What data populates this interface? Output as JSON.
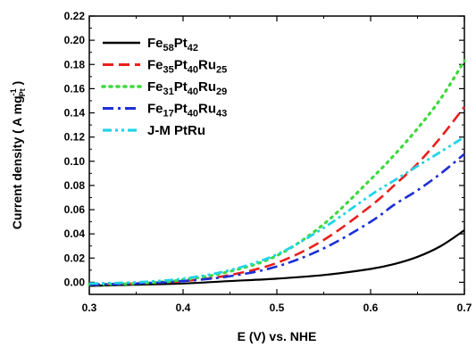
{
  "chart_data": {
    "type": "line",
    "xlabel": "E (V) vs. NHE",
    "ylabel_main": "Current density ( A mg",
    "ylabel_sup": "-1",
    "ylabel_sub": "Pt",
    "ylabel_close": " )",
    "xlim": [
      0.3,
      0.7
    ],
    "ylim": [
      -0.01,
      0.22
    ],
    "x_ticks": [
      0.3,
      0.4,
      0.5,
      0.6,
      0.7
    ],
    "x_tick_labels": [
      "0.3",
      "0.4",
      "0.5",
      "0.6",
      "0.7"
    ],
    "y_ticks": [
      0.0,
      0.02,
      0.04,
      0.06,
      0.08,
      0.1,
      0.12,
      0.14,
      0.16,
      0.18,
      0.2,
      0.22
    ],
    "y_tick_labels": [
      "0.00",
      "0.02",
      "0.04",
      "0.06",
      "0.08",
      "0.10",
      "0.12",
      "0.14",
      "0.16",
      "0.18",
      "0.20",
      "0.22"
    ],
    "grid": false,
    "legend_position": "top-left",
    "series": [
      {
        "name": "Fe58Pt42",
        "legend_parts": [
          [
            "Fe",
            ""
          ],
          [
            "58",
            "sub"
          ],
          [
            "Pt",
            ""
          ],
          [
            "42",
            "sub"
          ]
        ],
        "color": "#000000",
        "style": "solid",
        "x": [
          0.3,
          0.35,
          0.4,
          0.45,
          0.5,
          0.55,
          0.6,
          0.625,
          0.65,
          0.675,
          0.7
        ],
        "y": [
          -0.003,
          -0.002,
          -0.001,
          0.001,
          0.003,
          0.006,
          0.011,
          0.015,
          0.021,
          0.03,
          0.043
        ]
      },
      {
        "name": "Fe35Pt40Ru25",
        "legend_parts": [
          [
            "Fe",
            ""
          ],
          [
            "35",
            "sub"
          ],
          [
            "Pt",
            ""
          ],
          [
            "40",
            "sub"
          ],
          [
            "Ru",
            ""
          ],
          [
            "25",
            "sub"
          ]
        ],
        "color": "#e8201c",
        "style": "dash",
        "x": [
          0.3,
          0.35,
          0.4,
          0.45,
          0.5,
          0.55,
          0.6,
          0.625,
          0.65,
          0.675,
          0.7
        ],
        "y": [
          -0.002,
          -0.001,
          0.001,
          0.006,
          0.016,
          0.035,
          0.063,
          0.08,
          0.098,
          0.12,
          0.145
        ]
      },
      {
        "name": "Fe31Pt40Ru29",
        "legend_parts": [
          [
            "Fe",
            ""
          ],
          [
            "31",
            "sub"
          ],
          [
            "Pt",
            ""
          ],
          [
            "40",
            "sub"
          ],
          [
            "Ru",
            ""
          ],
          [
            "29",
            "sub"
          ]
        ],
        "color": "#3dd93d",
        "style": "dot",
        "x": [
          0.3,
          0.35,
          0.4,
          0.45,
          0.5,
          0.55,
          0.6,
          0.625,
          0.65,
          0.675,
          0.7
        ],
        "y": [
          -0.002,
          -0.001,
          0.002,
          0.009,
          0.022,
          0.048,
          0.085,
          0.105,
          0.127,
          0.152,
          0.183
        ]
      },
      {
        "name": "Fe17Pt40Ru43",
        "legend_parts": [
          [
            "Fe",
            ""
          ],
          [
            "17",
            "sub"
          ],
          [
            "Pt",
            ""
          ],
          [
            "40",
            "sub"
          ],
          [
            "Ru",
            ""
          ],
          [
            "43",
            "sub"
          ]
        ],
        "color": "#1c2fd6",
        "style": "dashdot",
        "x": [
          0.3,
          0.35,
          0.4,
          0.45,
          0.5,
          0.55,
          0.6,
          0.625,
          0.65,
          0.675,
          0.7
        ],
        "y": [
          -0.002,
          -0.001,
          0.001,
          0.005,
          0.013,
          0.028,
          0.05,
          0.064,
          0.076,
          0.09,
          0.106
        ]
      },
      {
        "name": "J-M PtRu",
        "legend_parts": [
          [
            "J-M PtRu",
            ""
          ]
        ],
        "color": "#22d4e6",
        "style": "dashdotdot",
        "x": [
          0.3,
          0.35,
          0.4,
          0.45,
          0.5,
          0.55,
          0.6,
          0.625,
          0.65,
          0.675,
          0.7
        ],
        "y": [
          -0.001,
          0.0,
          0.003,
          0.01,
          0.023,
          0.045,
          0.072,
          0.084,
          0.096,
          0.108,
          0.12
        ]
      }
    ]
  }
}
